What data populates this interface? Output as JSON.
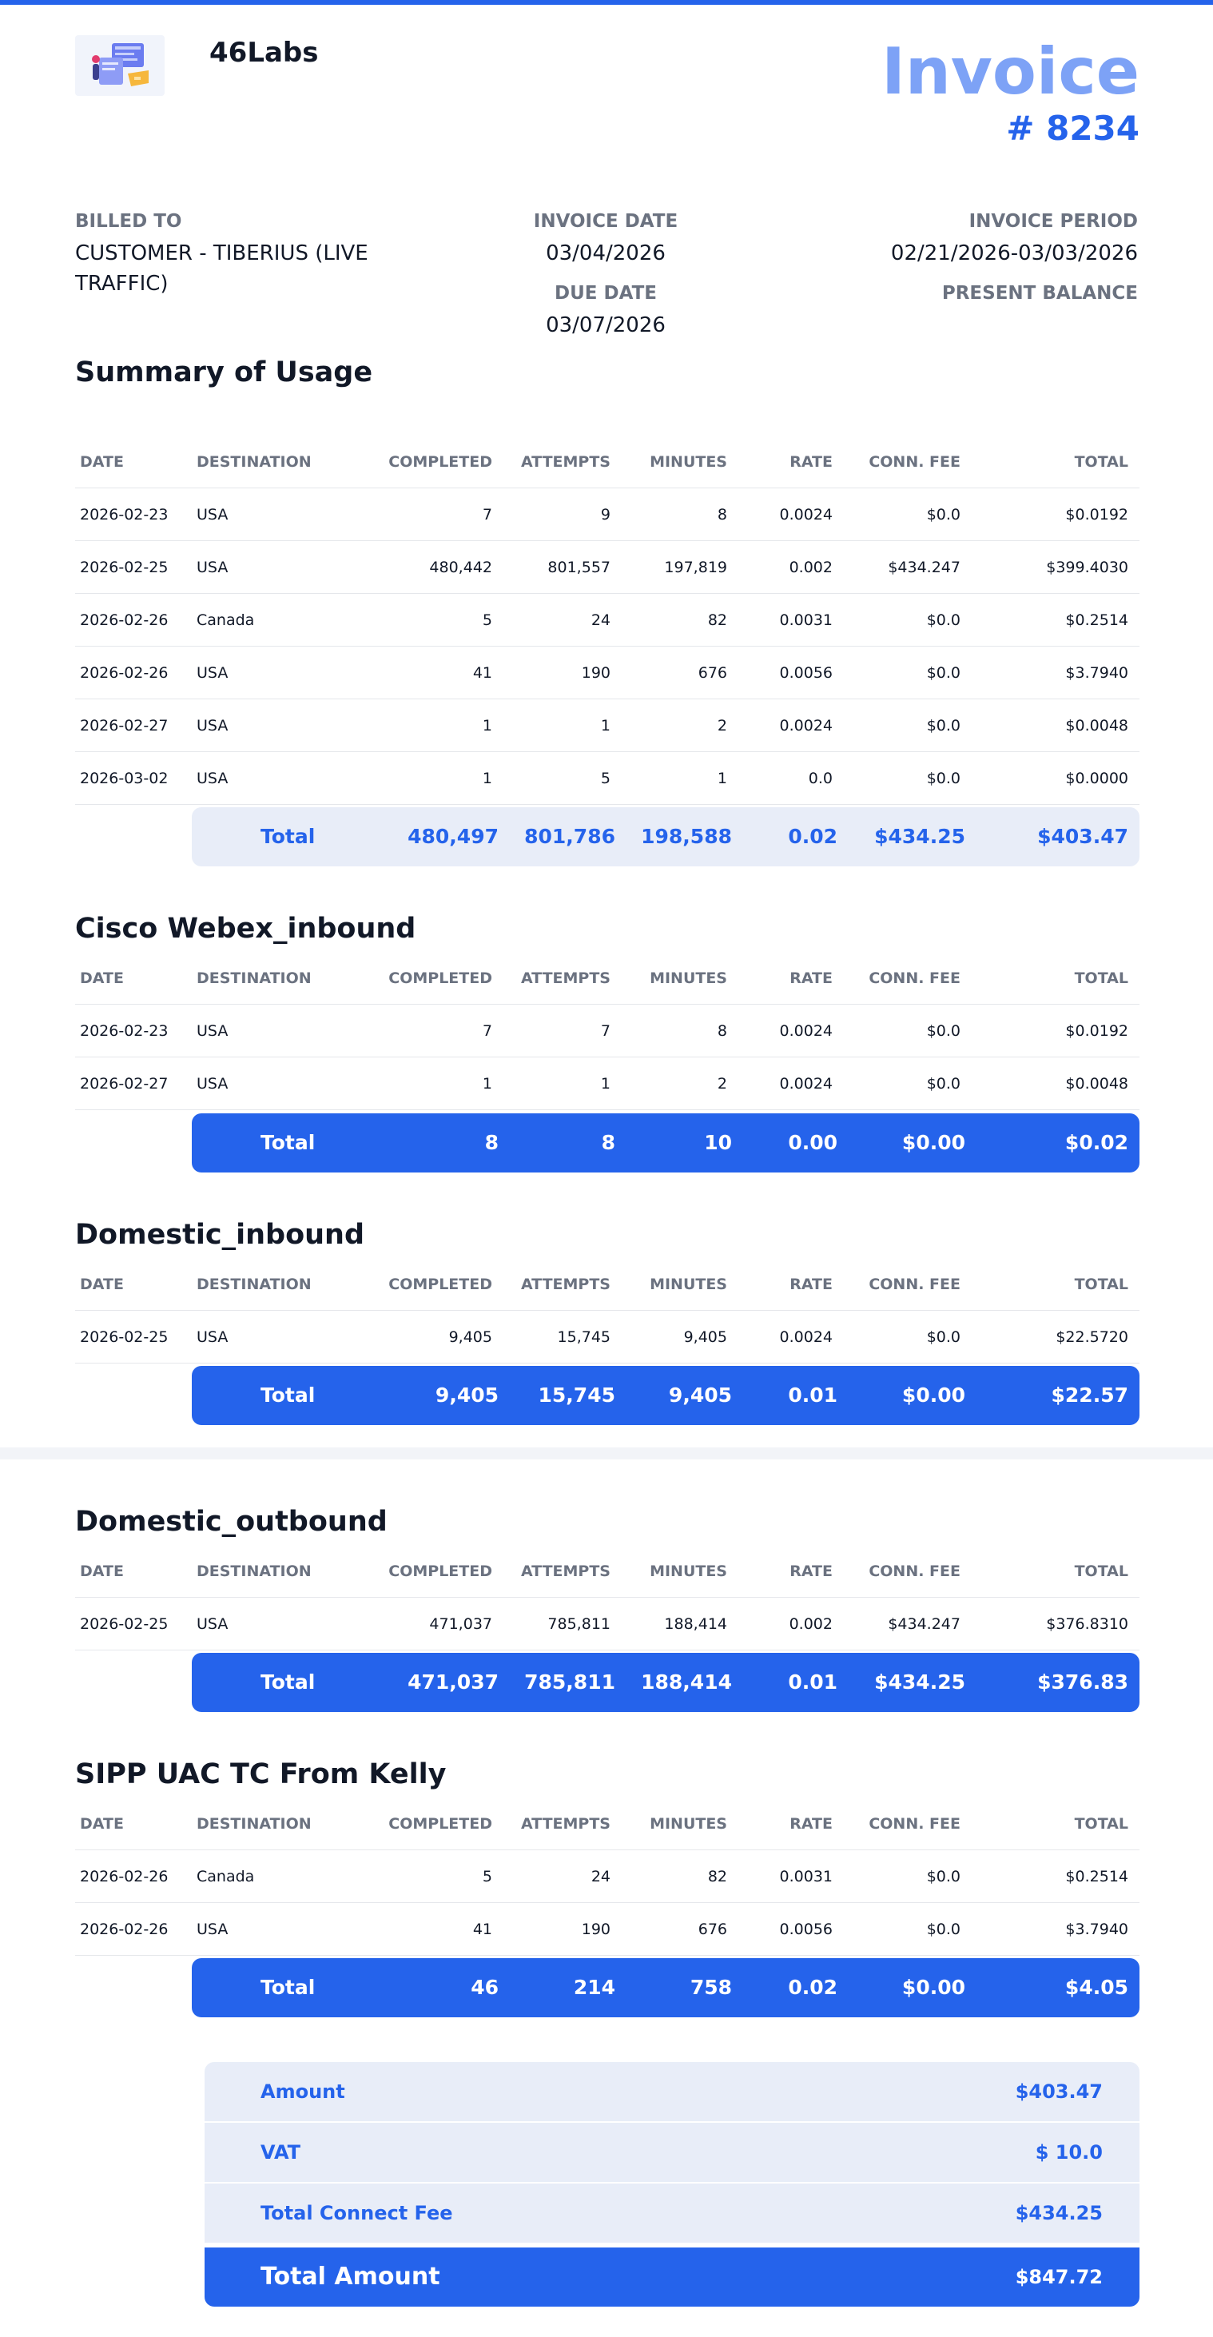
{
  "header": {
    "company": "46Labs",
    "invoice_word": "Invoice",
    "invoice_number": "# 8234",
    "logo_icon": "invoice-illustration-icon"
  },
  "billing": {
    "billed_to_label": "BILLED TO",
    "billed_to_value": "CUSTOMER - TIBERIUS (LIVE TRAFFIC)",
    "invoice_date_label": "INVOICE DATE",
    "invoice_date_value": "03/04/2026",
    "due_date_label": "DUE DATE",
    "due_date_value": "03/07/2026",
    "invoice_period_label": "INVOICE PERIOD",
    "invoice_period_value": "02/21/2026-03/03/2026",
    "present_balance_label": "PRESENT BALANCE"
  },
  "columns": {
    "date": "DATE",
    "destination": "DESTINATION",
    "completed": "COMPLETED",
    "attempts": "ATTEMPTS",
    "minutes": "MINUTES",
    "rate": "RATE",
    "conn_fee": "CONN. FEE",
    "total": "TOTAL"
  },
  "sections": [
    {
      "title": "Summary of Usage",
      "rows": [
        {
          "date": "2026-02-23",
          "destination": "USA",
          "completed": "7",
          "attempts": "9",
          "minutes": "8",
          "rate": "0.0024",
          "conn_fee": "$0.0",
          "total": "$0.0192"
        },
        {
          "date": "2026-02-25",
          "destination": "USA",
          "completed": "480,442",
          "attempts": "801,557",
          "minutes": "197,819",
          "rate": "0.002",
          "conn_fee": "$434.247",
          "total": "$399.4030"
        },
        {
          "date": "2026-02-26",
          "destination": "Canada",
          "completed": "5",
          "attempts": "24",
          "minutes": "82",
          "rate": "0.0031",
          "conn_fee": "$0.0",
          "total": "$0.2514"
        },
        {
          "date": "2026-02-26",
          "destination": "USA",
          "completed": "41",
          "attempts": "190",
          "minutes": "676",
          "rate": "0.0056",
          "conn_fee": "$0.0",
          "total": "$3.7940"
        },
        {
          "date": "2026-02-27",
          "destination": "USA",
          "completed": "1",
          "attempts": "1",
          "minutes": "2",
          "rate": "0.0024",
          "conn_fee": "$0.0",
          "total": "$0.0048"
        },
        {
          "date": "2026-03-02",
          "destination": "USA",
          "completed": "1",
          "attempts": "5",
          "minutes": "1",
          "rate": "0.0",
          "conn_fee": "$0.0",
          "total": "$0.0000"
        }
      ],
      "total": {
        "label": "Total",
        "completed": "480,497",
        "attempts": "801,786",
        "minutes": "198,588",
        "rate": "0.02",
        "conn_fee": "$434.25",
        "total": "$403.47"
      }
    },
    {
      "title": "Cisco Webex_inbound",
      "rows": [
        {
          "date": "2026-02-23",
          "destination": "USA",
          "completed": "7",
          "attempts": "7",
          "minutes": "8",
          "rate": "0.0024",
          "conn_fee": "$0.0",
          "total": "$0.0192"
        },
        {
          "date": "2026-02-27",
          "destination": "USA",
          "completed": "1",
          "attempts": "1",
          "minutes": "2",
          "rate": "0.0024",
          "conn_fee": "$0.0",
          "total": "$0.0048"
        }
      ],
      "total": {
        "label": "Total",
        "completed": "8",
        "attempts": "8",
        "minutes": "10",
        "rate": "0.00",
        "conn_fee": "$0.00",
        "total": "$0.02"
      }
    },
    {
      "title": "Domestic_inbound",
      "rows": [
        {
          "date": "2026-02-25",
          "destination": "USA",
          "completed": "9,405",
          "attempts": "15,745",
          "minutes": "9,405",
          "rate": "0.0024",
          "conn_fee": "$0.0",
          "total": "$22.5720"
        }
      ],
      "total": {
        "label": "Total",
        "completed": "9,405",
        "attempts": "15,745",
        "minutes": "9,405",
        "rate": "0.01",
        "conn_fee": "$0.00",
        "total": "$22.57"
      }
    },
    {
      "title": "Domestic_outbound",
      "rows": [
        {
          "date": "2026-02-25",
          "destination": "USA",
          "completed": "471,037",
          "attempts": "785,811",
          "minutes": "188,414",
          "rate": "0.002",
          "conn_fee": "$434.247",
          "total": "$376.8310"
        }
      ],
      "total": {
        "label": "Total",
        "completed": "471,037",
        "attempts": "785,811",
        "minutes": "188,414",
        "rate": "0.01",
        "conn_fee": "$434.25",
        "total": "$376.83"
      }
    },
    {
      "title": "SIPP UAC TC From Kelly",
      "rows": [
        {
          "date": "2026-02-26",
          "destination": "Canada",
          "completed": "5",
          "attempts": "24",
          "minutes": "82",
          "rate": "0.0031",
          "conn_fee": "$0.0",
          "total": "$0.2514"
        },
        {
          "date": "2026-02-26",
          "destination": "USA",
          "completed": "41",
          "attempts": "190",
          "minutes": "676",
          "rate": "0.0056",
          "conn_fee": "$0.0",
          "total": "$3.7940"
        }
      ],
      "total": {
        "label": "Total",
        "completed": "46",
        "attempts": "214",
        "minutes": "758",
        "rate": "0.02",
        "conn_fee": "$0.00",
        "total": "$4.05"
      }
    }
  ],
  "summary": {
    "amount_label": "Amount",
    "amount_value": "$403.47",
    "vat_label": "VAT",
    "vat_value": "$ 10.0",
    "connect_fee_label": "Total Connect Fee",
    "connect_fee_value": "$434.25",
    "total_label": "Total Amount",
    "total_value": "$847.72"
  },
  "colors": {
    "accent": "#2563eb",
    "accent_light": "#7da2f6",
    "total_bar_light": "#e8edf8",
    "muted_text": "#6b7280"
  }
}
